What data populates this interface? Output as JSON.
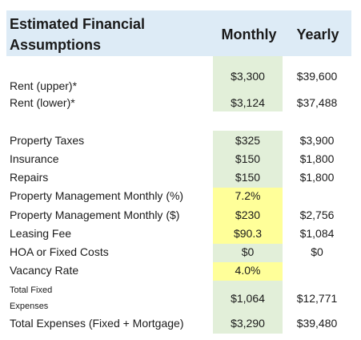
{
  "header": {
    "title_line1": "Estimated Financial",
    "title_line2": "Assumptions",
    "monthly": "Monthly",
    "yearly": "Yearly"
  },
  "colors": {
    "header_bg": "#ddebf6",
    "monthly_bg": "#e2efd9",
    "input_highlight": "#ffff99"
  },
  "rows": {
    "rent_upper": {
      "label": "Rent (upper)*",
      "monthly": "$3,300",
      "yearly": "$39,600"
    },
    "rent_lower": {
      "label": "Rent (lower)*",
      "monthly": "$3,124",
      "yearly": "$37,488"
    },
    "property_taxes": {
      "label": "Property Taxes",
      "monthly": "$325",
      "yearly": "$3,900"
    },
    "insurance": {
      "label": "Insurance",
      "monthly": "$150",
      "yearly": "$1,800"
    },
    "repairs": {
      "label": "Repairs",
      "monthly": "$150",
      "yearly": "$1,800"
    },
    "pm_pct": {
      "label": "Property Management Monthly (%)",
      "monthly": "7.2%",
      "yearly": ""
    },
    "pm_dollar": {
      "label": "Property Management Monthly ($)",
      "monthly": "$230",
      "yearly": "$2,756"
    },
    "leasing_fee": {
      "label": "Leasing Fee",
      "monthly": "$90.3",
      "yearly": "$1,084"
    },
    "hoa": {
      "label": "HOA or Fixed Costs",
      "monthly": "$0",
      "yearly": "$0"
    },
    "vacancy": {
      "label": "Vacancy Rate",
      "monthly": "4.0%",
      "yearly": ""
    },
    "total_fixed": {
      "label_line1": "Total Fixed",
      "label_line2": "Expenses",
      "monthly": "$1,064",
      "yearly": "$12,771"
    },
    "total_expenses": {
      "label": "Total Expenses (Fixed + Mortgage)",
      "monthly": "$3,290",
      "yearly": "$39,480"
    }
  }
}
